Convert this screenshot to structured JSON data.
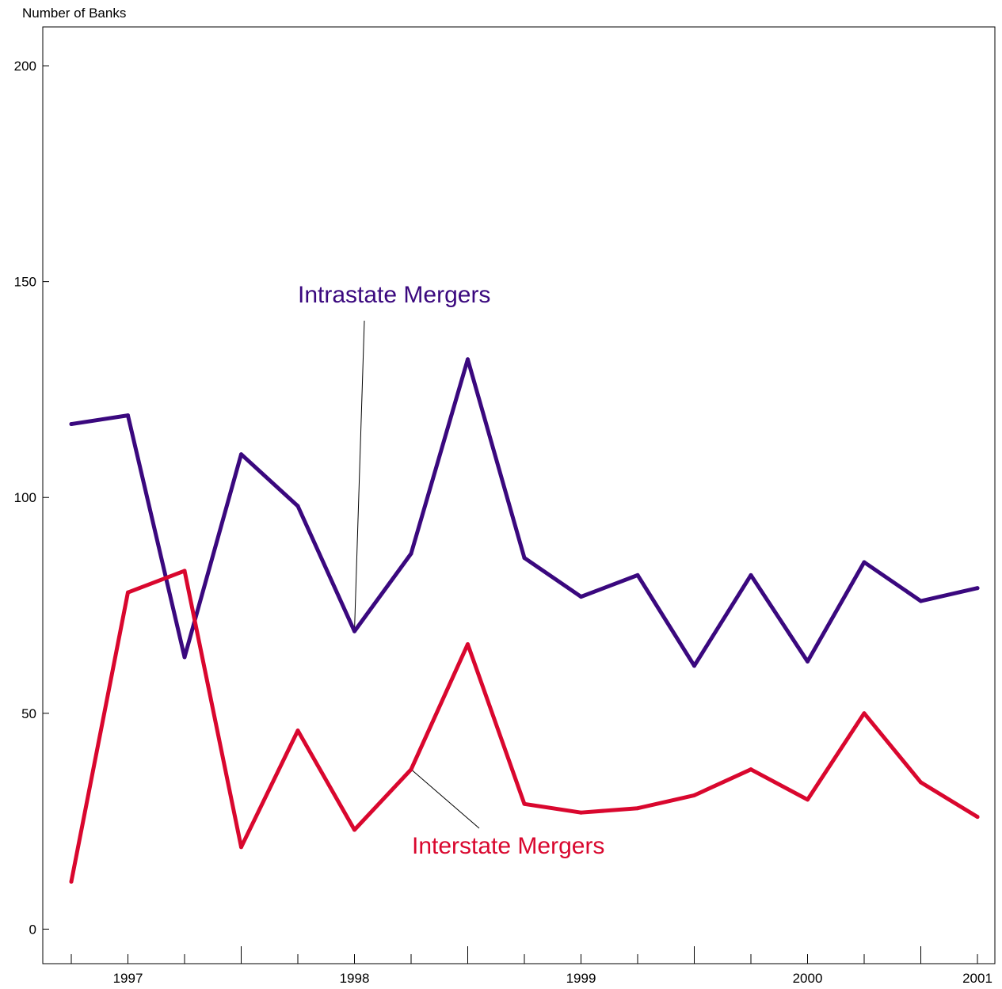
{
  "chart_data": {
    "type": "line",
    "title": "",
    "ylabel": "Number of Banks",
    "xlabel": "",
    "ylim": [
      -8,
      209
    ],
    "y_ticks": [
      0,
      50,
      100,
      150,
      200
    ],
    "x_tick_labels": [
      "1997",
      "1998",
      "1999",
      "2000",
      "2001"
    ],
    "x": [
      "1996Q4",
      "1997Q1",
      "1997Q2",
      "1997Q3",
      "1997Q4",
      "1998Q1",
      "1998Q2",
      "1998Q3",
      "1998Q4",
      "1999Q1",
      "1999Q2",
      "1999Q3",
      "1999Q4",
      "2000Q1",
      "2000Q2",
      "2000Q3",
      "2001Q1"
    ],
    "grid": false,
    "series": [
      {
        "name": "Intrastate Mergers",
        "color": "#3a087e",
        "values": [
          117,
          119,
          63,
          110,
          98,
          69,
          87,
          132,
          86,
          77,
          82,
          61,
          82,
          62,
          85,
          76,
          79
        ]
      },
      {
        "name": "Interstate Mergers",
        "color": "#d9072e",
        "values": [
          11,
          78,
          83,
          19,
          46,
          23,
          37,
          66,
          29,
          27,
          28,
          31,
          37,
          30,
          50,
          34,
          26
        ]
      }
    ]
  }
}
